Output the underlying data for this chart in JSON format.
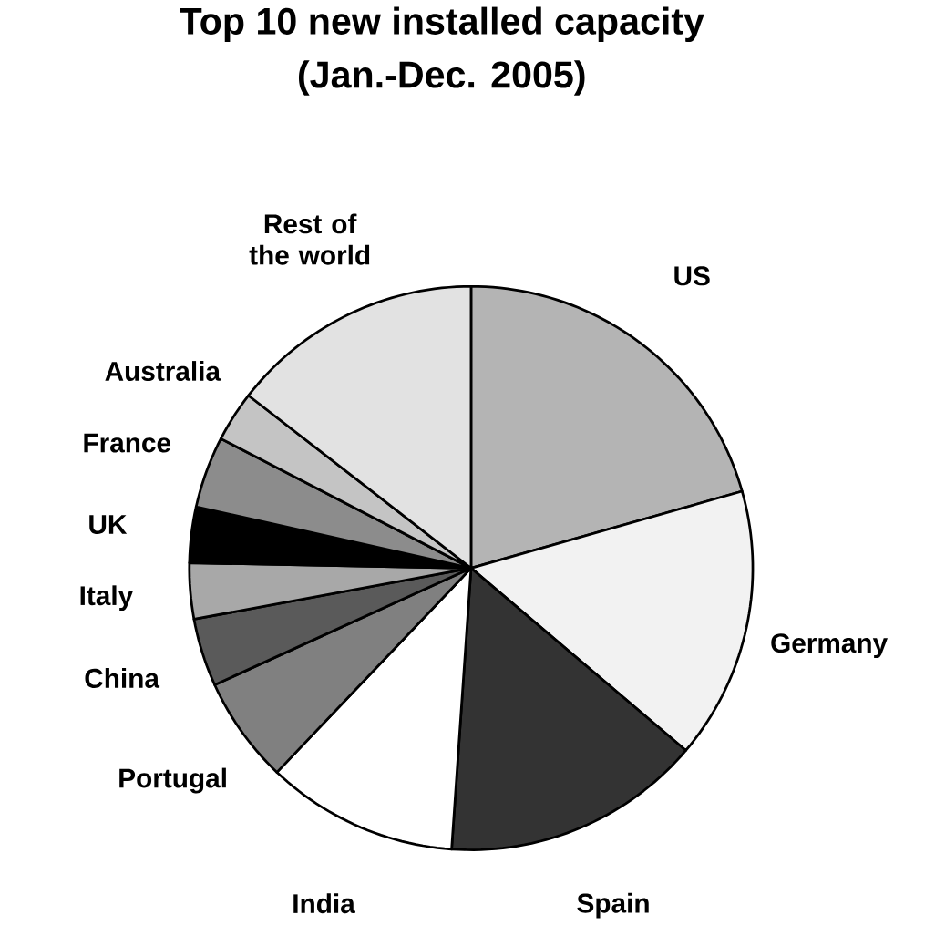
{
  "chart_data": {
    "type": "pie",
    "title": "Top 10 new installed capacity",
    "subtitle": "(Jan.-Dec. 2005)",
    "categories": [
      "US",
      "Germany",
      "Spain",
      "India",
      "Portugal",
      "China",
      "Italy",
      "UK",
      "France",
      "Australia",
      "Rest of the world"
    ],
    "values": [
      20.6,
      15.6,
      14.9,
      11,
      6.1,
      3.9,
      3.2,
      3.2,
      4.1,
      2.9,
      14.5
    ],
    "colors": [
      "#b4b4b4",
      "#f2f2f2",
      "#333333",
      "#ffffff",
      "#808080",
      "#5a5a5a",
      "#a8a8a8",
      "#000000",
      "#8c8c8c",
      "#c4c4c4",
      "#e2e2e2"
    ]
  }
}
